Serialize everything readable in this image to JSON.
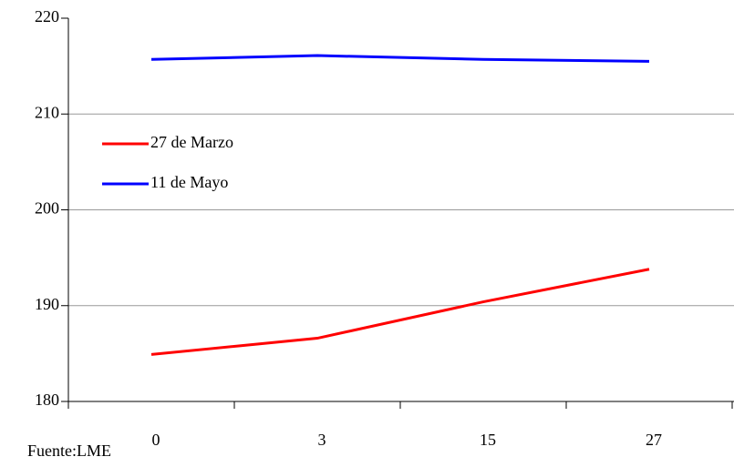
{
  "chart_data": {
    "type": "line",
    "categories": [
      "0",
      "3",
      "15",
      "27"
    ],
    "series": [
      {
        "name": "27 de Marzo",
        "color": "#ff0000",
        "values": [
          184.9,
          186.6,
          190.4,
          193.8
        ]
      },
      {
        "name": "11 de Mayo",
        "color": "#0000ff",
        "values": [
          215.7,
          216.1,
          215.7,
          215.5
        ]
      }
    ],
    "ylim": [
      180,
      220
    ],
    "yticks": [
      180,
      190,
      200,
      210,
      220
    ],
    "grid": true,
    "legend": "left",
    "note": "Fuente:LME"
  }
}
